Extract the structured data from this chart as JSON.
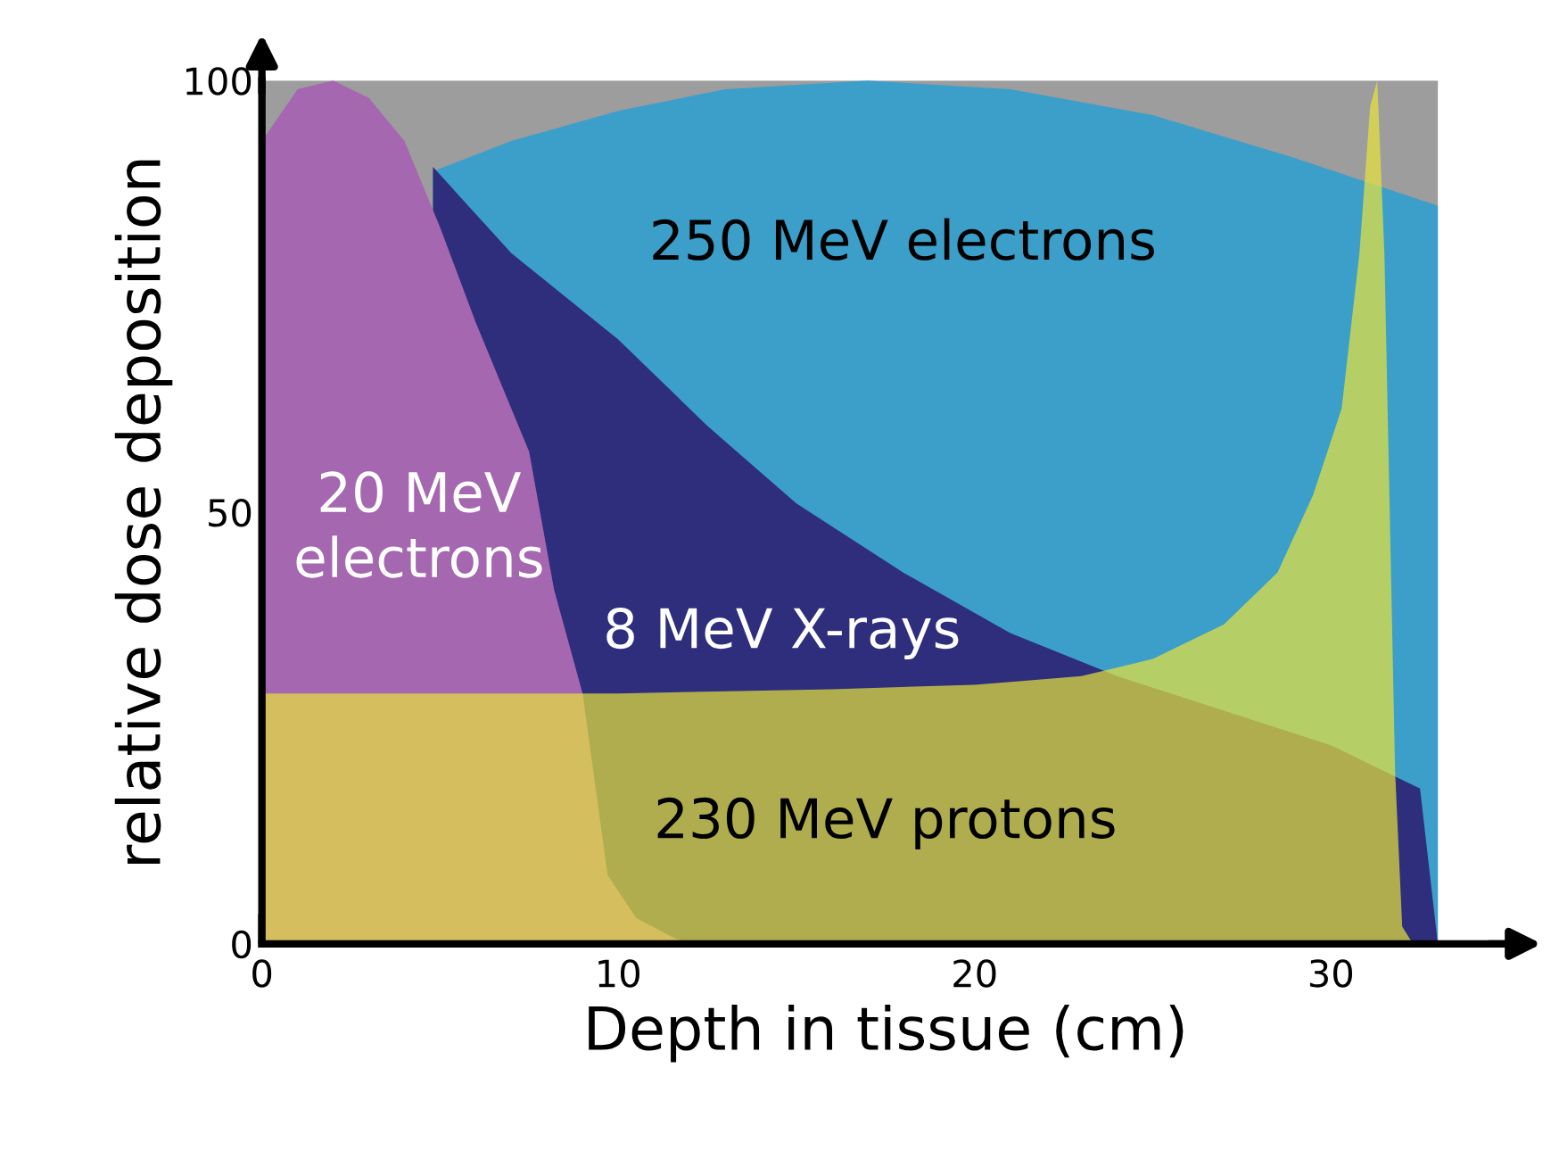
{
  "chart_data": {
    "type": "area",
    "xlabel": "Depth in tissue (cm)",
    "ylabel": "relative dose deposition",
    "xlim": [
      0,
      35
    ],
    "ylim": [
      0,
      100
    ],
    "xticks": [
      0,
      10,
      20,
      30
    ],
    "yticks": [
      0,
      50,
      100
    ],
    "grid": false,
    "bands": [
      {
        "axis": "x",
        "from": 0,
        "to": 33,
        "color": "#9d9d9d"
      }
    ],
    "series": [
      {
        "name": "250 MeV electrons",
        "color": "#3c9fc9",
        "x": [
          4.8,
          7,
          10,
          13,
          17,
          21,
          25,
          29,
          33
        ],
        "values": [
          89.5,
          93,
          96.5,
          99,
          100,
          99,
          96,
          91,
          85.5
        ]
      },
      {
        "name": "8 MeV X-rays",
        "color": "#2e2e7c",
        "x": [
          4.8,
          7,
          10,
          12.5,
          15,
          18,
          21,
          24,
          27,
          30,
          32.5,
          33
        ],
        "values": [
          90,
          80,
          70,
          60,
          51,
          43,
          36,
          31,
          27,
          23,
          18,
          0
        ]
      },
      {
        "name": "20 MeV\nelectrons",
        "color": "#a567b0",
        "x": [
          0,
          1,
          2,
          3,
          4,
          5,
          6,
          7,
          7.5,
          8.2,
          9,
          9.7,
          10.5,
          11.6,
          12
        ],
        "values": [
          93,
          99,
          100,
          98,
          93,
          83,
          72,
          62,
          57,
          41,
          29,
          8,
          3,
          0.6,
          0
        ]
      },
      {
        "name": "230 MeV protons",
        "color": "#e8e43c",
        "x": [
          0,
          10,
          16,
          20,
          23,
          25,
          27,
          28.5,
          29.5,
          30.3,
          30.8,
          31.1,
          31.3,
          31.5,
          31.8,
          32,
          32.3
        ],
        "values": [
          29,
          29,
          29.5,
          30,
          31,
          33,
          37,
          43,
          52,
          62,
          80,
          97,
          100,
          80,
          20,
          2,
          0
        ]
      }
    ]
  }
}
